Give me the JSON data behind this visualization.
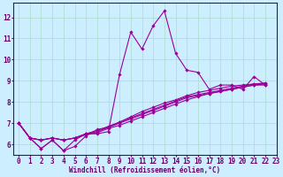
{
  "background_color": "#cceeff",
  "grid_color": "#aaddcc",
  "line_color": "#990099",
  "xlabel": "Windchill (Refroidissement éolien,°C)",
  "xlim": [
    -0.5,
    23
  ],
  "ylim": [
    5.5,
    12.7
  ],
  "yticks": [
    6,
    7,
    8,
    9,
    10,
    11,
    12
  ],
  "xticks": [
    0,
    1,
    2,
    3,
    4,
    5,
    6,
    7,
    8,
    9,
    10,
    11,
    12,
    13,
    14,
    15,
    16,
    17,
    18,
    19,
    20,
    21,
    22,
    23
  ],
  "series": [
    [
      7.0,
      6.3,
      5.8,
      6.2,
      5.7,
      6.2,
      6.5,
      6.5,
      6.6,
      9.3,
      11.3,
      10.5,
      11.6,
      12.3,
      10.3,
      9.5,
      9.4,
      8.6,
      8.8,
      8.8,
      8.6,
      9.2,
      8.8
    ],
    [
      7.0,
      6.3,
      6.2,
      6.3,
      6.2,
      6.3,
      6.5,
      6.6,
      6.8,
      7.0,
      7.2,
      7.4,
      7.6,
      7.8,
      8.0,
      8.2,
      8.3,
      8.4,
      8.5,
      8.6,
      8.7,
      8.8,
      8.8
    ],
    [
      7.0,
      6.3,
      6.2,
      6.3,
      6.2,
      6.3,
      6.5,
      6.65,
      6.85,
      7.05,
      7.25,
      7.45,
      7.65,
      7.85,
      8.05,
      8.25,
      8.35,
      8.45,
      8.55,
      8.65,
      8.75,
      8.85,
      8.9
    ],
    [
      7.0,
      6.3,
      6.2,
      6.3,
      6.2,
      6.3,
      6.45,
      6.55,
      6.75,
      6.9,
      7.1,
      7.3,
      7.5,
      7.7,
      7.9,
      8.1,
      8.25,
      8.4,
      8.5,
      8.6,
      8.7,
      8.8,
      8.85
    ],
    [
      7.0,
      6.3,
      5.8,
      6.2,
      5.7,
      5.9,
      6.4,
      6.7,
      6.8,
      7.05,
      7.3,
      7.55,
      7.75,
      7.95,
      8.1,
      8.3,
      8.45,
      8.55,
      8.65,
      8.75,
      8.8,
      8.85,
      8.87
    ]
  ],
  "marker": "D",
  "markersize": 1.8,
  "linewidth": 0.8,
  "xlabel_fontsize": 5.5,
  "tick_fontsize": 5.5,
  "tick_color": "#660066",
  "spine_color": "#660066",
  "grid_linewidth": 0.5
}
